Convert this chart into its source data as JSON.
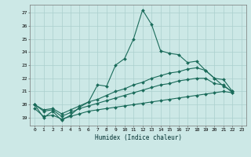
{
  "xlabel": "Humidex (Indice chaleur)",
  "background_color": "#cce8e6",
  "grid_color": "#aacfcd",
  "line_color": "#1a6b5a",
  "xlim": [
    -0.5,
    23.5
  ],
  "ylim": [
    18.4,
    27.6
  ],
  "xticks": [
    0,
    1,
    2,
    3,
    4,
    5,
    6,
    7,
    8,
    9,
    10,
    11,
    12,
    13,
    14,
    15,
    16,
    17,
    18,
    19,
    20,
    21,
    22,
    23
  ],
  "yticks": [
    19,
    20,
    21,
    22,
    23,
    24,
    25,
    26,
    27
  ],
  "series": [
    {
      "x": [
        0,
        1,
        2,
        3,
        4,
        5,
        6,
        7,
        8,
        9,
        10,
        11,
        12,
        13,
        14,
        15,
        16,
        17,
        18,
        19,
        20,
        21,
        22
      ],
      "y": [
        20.0,
        19.0,
        19.5,
        18.8,
        19.2,
        19.8,
        20.2,
        21.5,
        21.4,
        23.0,
        23.5,
        25.0,
        27.2,
        26.1,
        24.1,
        23.9,
        23.8,
        23.2,
        23.3,
        22.6,
        22.0,
        21.4,
        21.0
      ]
    },
    {
      "x": [
        0,
        1,
        2,
        3,
        4,
        5,
        6,
        7,
        8,
        9,
        10,
        11,
        12,
        13,
        14,
        15,
        16,
        17,
        18,
        19,
        20,
        21,
        22
      ],
      "y": [
        20.0,
        19.6,
        19.7,
        19.3,
        19.6,
        19.9,
        20.2,
        20.4,
        20.7,
        21.0,
        21.2,
        21.5,
        21.7,
        22.0,
        22.2,
        22.4,
        22.5,
        22.7,
        22.8,
        22.6,
        22.0,
        21.9,
        21.0
      ]
    },
    {
      "x": [
        0,
        1,
        2,
        3,
        4,
        5,
        6,
        7,
        8,
        9,
        10,
        11,
        12,
        13,
        14,
        15,
        16,
        17,
        18,
        19,
        20,
        21,
        22
      ],
      "y": [
        20.0,
        19.5,
        19.6,
        19.1,
        19.4,
        19.7,
        19.9,
        20.1,
        20.3,
        20.5,
        20.7,
        20.9,
        21.1,
        21.3,
        21.5,
        21.6,
        21.8,
        21.9,
        22.0,
        22.0,
        21.6,
        21.5,
        20.9
      ]
    },
    {
      "x": [
        0,
        1,
        2,
        3,
        4,
        5,
        6,
        7,
        8,
        9,
        10,
        11,
        12,
        13,
        14,
        15,
        16,
        17,
        18,
        19,
        20,
        21,
        22
      ],
      "y": [
        19.7,
        19.1,
        19.2,
        18.9,
        19.1,
        19.3,
        19.5,
        19.6,
        19.7,
        19.8,
        19.9,
        20.0,
        20.1,
        20.2,
        20.3,
        20.4,
        20.5,
        20.6,
        20.7,
        20.8,
        20.9,
        21.0,
        20.9
      ]
    }
  ]
}
